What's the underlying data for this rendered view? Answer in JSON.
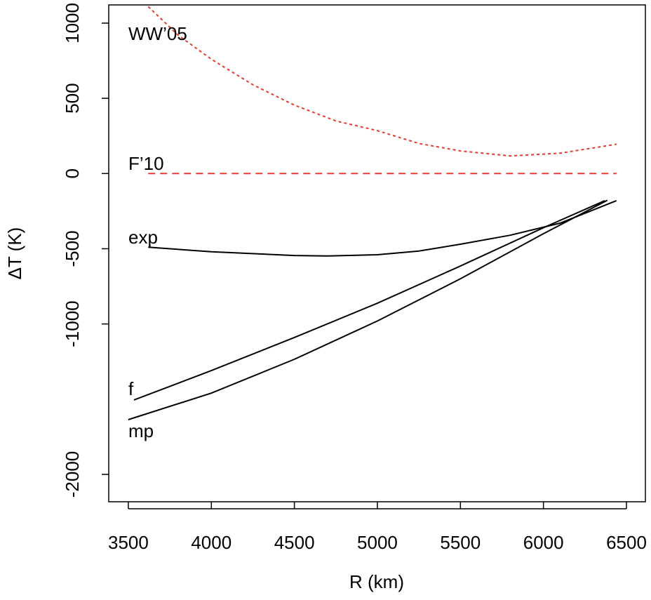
{
  "chart_data": {
    "type": "line",
    "x_label": "R (km)",
    "y_label": "ΔT (K)",
    "xlim": [
      3382,
      6614
    ],
    "ylim": [
      -2182,
      1121
    ],
    "xticks": [
      3500,
      4000,
      4500,
      5000,
      5500,
      6000,
      6500
    ],
    "yticks": [
      -2000,
      -1000,
      -500,
      0,
      500,
      1000
    ],
    "grid": false,
    "series": [
      {
        "name": "WW’05",
        "color": "#e8392f",
        "dash": "dotted",
        "x": [
          3620,
          3800,
          4000,
          4250,
          4500,
          4750,
          5000,
          5250,
          5500,
          5800,
          6100,
          6440
        ],
        "values": [
          1110,
          920,
          760,
          590,
          455,
          350,
          285,
          200,
          150,
          117,
          135,
          195
        ]
      },
      {
        "name": "F’10",
        "color": "#e8392f",
        "dash": "dashed",
        "x": [
          3620,
          6440
        ],
        "values": [
          0,
          0
        ]
      },
      {
        "name": "exp",
        "color": "#000000",
        "dash": "solid",
        "x": [
          3620,
          4000,
          4500,
          4700,
          5000,
          5250,
          5500,
          5800,
          6100,
          6440
        ],
        "values": [
          -490,
          -520,
          -545,
          -548,
          -540,
          -515,
          -470,
          -410,
          -330,
          -180
        ]
      },
      {
        "name": "f",
        "color": "#000000",
        "dash": "solid",
        "x": [
          3534,
          4000,
          4500,
          5000,
          5500,
          6000,
          6370
        ],
        "values": [
          -1505,
          -1310,
          -1090,
          -862,
          -615,
          -360,
          -180
        ]
      },
      {
        "name": "mp",
        "color": "#000000",
        "dash": "solid",
        "x": [
          3500,
          4000,
          4500,
          5000,
          5500,
          6000,
          6385
        ],
        "values": [
          -1636,
          -1460,
          -1235,
          -980,
          -700,
          -400,
          -178
        ]
      }
    ]
  }
}
